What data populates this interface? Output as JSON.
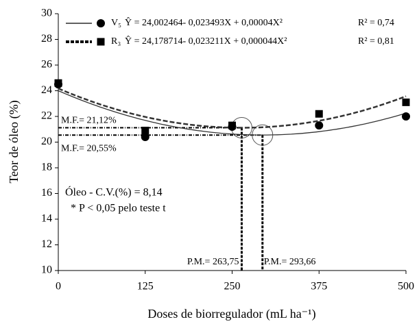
{
  "chart_data": {
    "type": "scatter",
    "x_label": "Doses de biorregulador (mL ha⁻¹)",
    "y_label": "Teor de óleo (%)",
    "x": [
      0,
      125,
      250,
      375,
      500
    ],
    "xlim": [
      0,
      500
    ],
    "xticks": [
      0,
      125,
      250,
      375,
      500
    ],
    "ylim": [
      10,
      30
    ],
    "yticks": [
      10,
      12,
      14,
      16,
      18,
      20,
      22,
      24,
      26,
      28,
      30
    ],
    "series": [
      {
        "name": "V₅",
        "color": "#000000",
        "marker": "circle",
        "line": "solid",
        "values": [
          24.5,
          20.4,
          21.2,
          21.3,
          22.0
        ],
        "equation": "Ŷ = 24,002464- 0,023493X + 0,00004X²",
        "fit": {
          "intercept": 24.002464,
          "linear": -0.023493,
          "quadratic": 4e-05
        },
        "r2": "R² = 0,74"
      },
      {
        "name": "R₃",
        "color": "#000000",
        "marker": "square",
        "line": "dashed",
        "values": [
          24.6,
          20.9,
          21.3,
          22.2,
          23.1
        ],
        "equation": "Ŷ = 24,178714- 0,023211X + 0,000044X²",
        "fit": {
          "intercept": 24.178714,
          "linear": -0.023211,
          "quadratic": 4.4e-05
        },
        "r2": "R² = 0,81"
      }
    ],
    "optima": [
      {
        "x": {
          "value": 263.75,
          "label": "P.M.= 263,75"
        },
        "y": {
          "value": 21.12,
          "label": "M.F.= 21,12%"
        }
      },
      {
        "x": {
          "value": 293.66,
          "label": "P.M.= 293,66"
        },
        "y": {
          "value": 20.55,
          "label": "M.F.= 20,55%"
        }
      }
    ],
    "annotations": [
      "Óleo - C.V.(%) = 8,14",
      "* P < 0,05 pelo teste t"
    ]
  }
}
